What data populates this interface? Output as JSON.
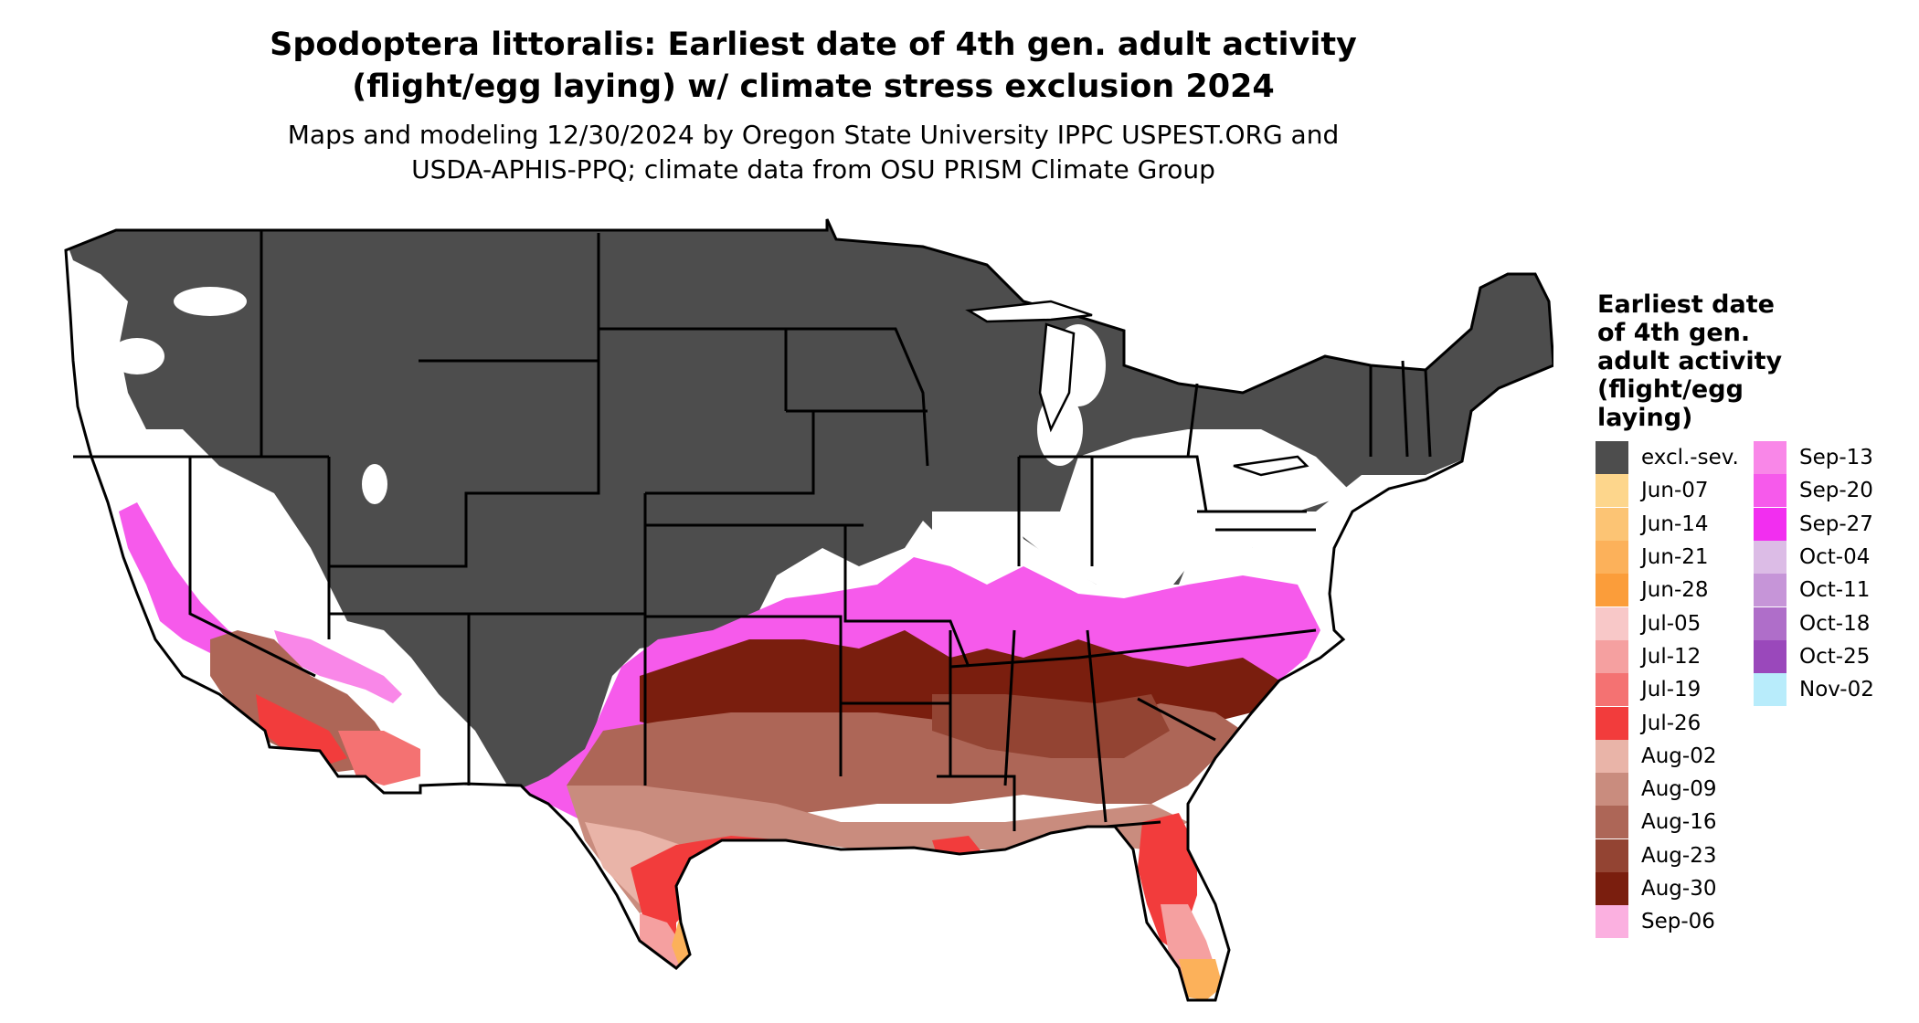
{
  "title": {
    "line1": "Spodoptera littoralis: Earliest date of 4th gen. adult activity",
    "line2": "(flight/egg laying) w/ climate stress exclusion 2024"
  },
  "subtitle": {
    "line1": "Maps and modeling 12/30/2024 by Oregon State University IPPC USPEST.ORG and",
    "line2": "USDA-APHIS-PPQ; climate data from OSU PRISM Climate Group"
  },
  "legend": {
    "title_lines": [
      "Earliest date",
      "of 4th gen.",
      "adult activity",
      "(flight/egg",
      "laying)"
    ],
    "column1": [
      {
        "label": "excl.-sev.",
        "color": "#4d4d4d"
      },
      {
        "label": "Jun-07",
        "color": "#fdd68c"
      },
      {
        "label": "Jun-14",
        "color": "#fcc474"
      },
      {
        "label": "Jun-21",
        "color": "#fcb15a"
      },
      {
        "label": "Jun-28",
        "color": "#fb9d3a"
      },
      {
        "label": "Jul-05",
        "color": "#f8c8c8"
      },
      {
        "label": "Jul-12",
        "color": "#f5a0a0"
      },
      {
        "label": "Jul-19",
        "color": "#f47272"
      },
      {
        "label": "Jul-26",
        "color": "#f23c3c"
      },
      {
        "label": "Aug-02",
        "color": "#e9b4a8"
      },
      {
        "label": "Aug-09",
        "color": "#c98c7e"
      },
      {
        "label": "Aug-16",
        "color": "#ad6657"
      },
      {
        "label": "Aug-23",
        "color": "#934433"
      },
      {
        "label": "Aug-30",
        "color": "#7a1e0e"
      },
      {
        "label": "Sep-06",
        "color": "#fbb0e0"
      }
    ],
    "column2": [
      {
        "label": "Sep-13",
        "color": "#f987e8"
      },
      {
        "label": "Sep-20",
        "color": "#f65aeb"
      },
      {
        "label": "Sep-27",
        "color": "#f22ef0"
      },
      {
        "label": "Oct-04",
        "color": "#dcbce6"
      },
      {
        "label": "Oct-11",
        "color": "#c695d8"
      },
      {
        "label": "Oct-18",
        "color": "#af6ec9"
      },
      {
        "label": "Oct-25",
        "color": "#9a48bb"
      },
      {
        "label": "Nov-02",
        "color": "#b8ecfb"
      }
    ]
  }
}
